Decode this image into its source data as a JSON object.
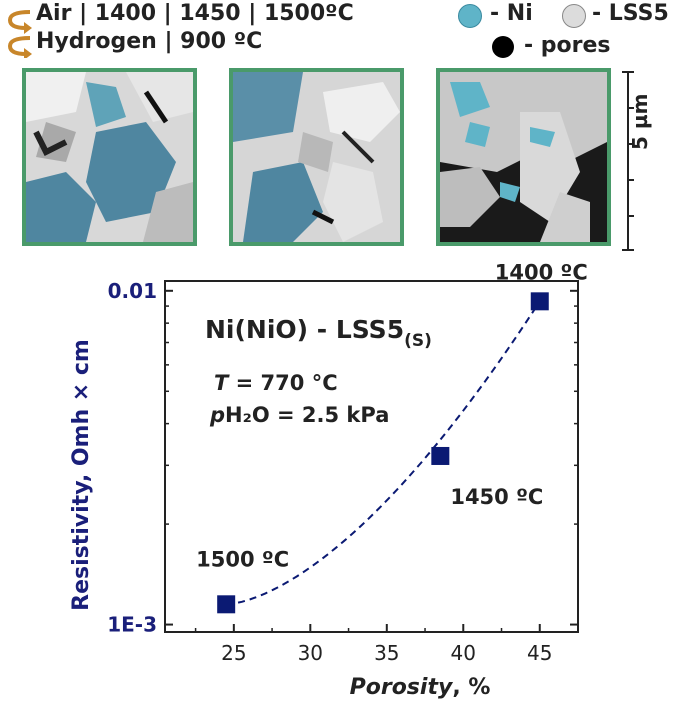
{
  "legend": {
    "line1": "Air | 1400 | 1450 | 1500ºC",
    "line2": "Hydrogen | 900 ºC",
    "ni_label": "- Ni",
    "lss5_label": "- LSS5",
    "pores_label": "- pores",
    "colors": {
      "ni": "#5fb4c8",
      "lss5": "#dcdcdc",
      "pores": "#000000",
      "arrow": "#c8862a"
    }
  },
  "micrographs": {
    "scale_label": "5 µm",
    "frame_color": "#4a9a6a"
  },
  "chart_data": {
    "type": "scatter",
    "title": "Ni(NiO) - LSS5",
    "title_subscript": "(S)",
    "conditions": {
      "line1_var": "T",
      "line1_rest": " = 770 °C",
      "line2_var": "p",
      "line2_rest": "H₂O = 2.5 kPa"
    },
    "xlabel": "Porosity",
    "xunit": ", %",
    "ylabel": "Resistivity, Omh × cm",
    "xlim": [
      20.5,
      47.5
    ],
    "ylim": [
      0.00095,
      0.0107
    ],
    "yscale": "log",
    "xticks": [
      25,
      30,
      35,
      40,
      45
    ],
    "yticks": [
      {
        "value": 0.01,
        "label": "0.01"
      },
      {
        "value": 0.001,
        "label": "1E-3"
      }
    ],
    "points": [
      {
        "x": 24.5,
        "y": 0.00115,
        "label": "1500 ºC"
      },
      {
        "x": 38.5,
        "y": 0.0032,
        "label": "1450 ºC"
      },
      {
        "x": 45.0,
        "y": 0.0093,
        "label": "1400 ºC"
      }
    ],
    "marker_color": "#0b1a73",
    "fit_line": "dashed"
  }
}
